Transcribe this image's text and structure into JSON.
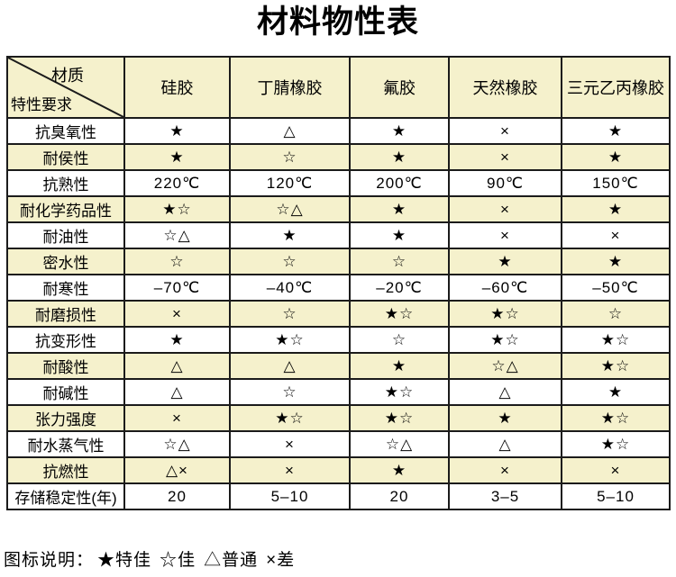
{
  "chart_data": {
    "type": "table",
    "title": "材料物性表",
    "corner_top": "材质",
    "corner_bottom": "特性要求",
    "columns": [
      "硅胶",
      "丁腈橡胶",
      "氟胶",
      "天然橡胶",
      "三元乙丙橡胶"
    ],
    "rows": [
      {
        "label": "抗臭氧性",
        "values": [
          "★",
          "△",
          "★",
          "×",
          "★"
        ]
      },
      {
        "label": "耐侯性",
        "values": [
          "★",
          "☆",
          "★",
          "×",
          "★"
        ]
      },
      {
        "label": "抗熟性",
        "values": [
          "220℃",
          "120℃",
          "200℃",
          "90℃",
          "150℃"
        ]
      },
      {
        "label": "耐化学药品性",
        "values": [
          "★☆",
          "☆△",
          "★",
          "×",
          "★"
        ]
      },
      {
        "label": "耐油性",
        "values": [
          "☆△",
          "★",
          "★",
          "×",
          "×"
        ]
      },
      {
        "label": "密水性",
        "values": [
          "☆",
          "☆",
          "☆",
          "★",
          "★"
        ]
      },
      {
        "label": "耐寒性",
        "values": [
          "–70℃",
          "–40℃",
          "–20℃",
          "–60℃",
          "–50℃"
        ]
      },
      {
        "label": "耐磨损性",
        "values": [
          "×",
          "☆",
          "★☆",
          "★☆",
          "☆"
        ]
      },
      {
        "label": "抗变形性",
        "values": [
          "★",
          "★☆",
          "☆",
          "★☆",
          "★☆"
        ]
      },
      {
        "label": "耐酸性",
        "values": [
          "△",
          "△",
          "★",
          "☆△",
          "★☆"
        ]
      },
      {
        "label": "耐碱性",
        "values": [
          "△",
          "☆",
          "★☆",
          "△",
          "★"
        ]
      },
      {
        "label": "张力强度",
        "values": [
          "×",
          "★☆",
          "★☆",
          "★",
          "★☆"
        ]
      },
      {
        "label": "耐水蒸气性",
        "values": [
          "☆△",
          "×",
          "☆△",
          "△",
          "★☆"
        ]
      },
      {
        "label": "抗燃性",
        "values": [
          "△×",
          "×",
          "★",
          "×",
          "×"
        ]
      },
      {
        "label": "存储稳定性(年)",
        "values": [
          "20",
          "5–10",
          "20",
          "3–5",
          "5–10"
        ]
      }
    ],
    "legend": {
      "label": "图标说明：",
      "items": [
        {
          "symbol": "★",
          "meaning": "特佳"
        },
        {
          "symbol": "☆",
          "meaning": "佳"
        },
        {
          "symbol": "△",
          "meaning": "普通"
        },
        {
          "symbol": "×",
          "meaning": "差"
        }
      ]
    },
    "layout": {
      "striped": true,
      "stripe_rows": "even"
    }
  },
  "colors": {
    "row_highlight": "#F5F1CC",
    "border": "#1B1B1B",
    "background": "#FFFFFF"
  }
}
